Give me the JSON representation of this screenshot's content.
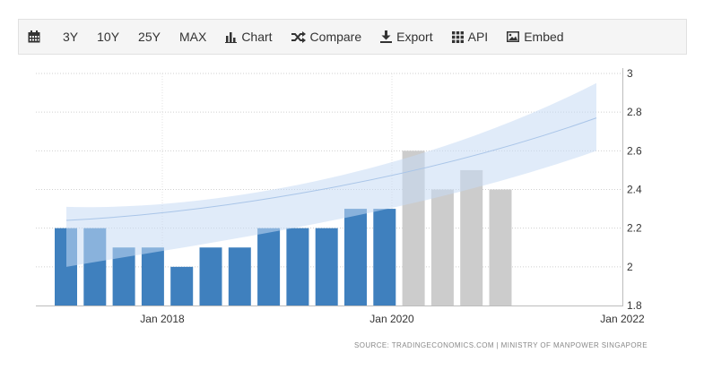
{
  "toolbar": {
    "items": [
      {
        "label": "3Y"
      },
      {
        "label": "10Y"
      },
      {
        "label": "25Y"
      },
      {
        "label": "MAX"
      },
      {
        "label": "Chart"
      },
      {
        "label": "Compare"
      },
      {
        "label": "Export"
      },
      {
        "label": "API"
      },
      {
        "label": "Embed"
      }
    ]
  },
  "chart_data": {
    "type": "bar",
    "series": [
      {
        "color": "#3f80be",
        "values": [
          2.2,
          2.2,
          2.1,
          2.1,
          2.0,
          2.1,
          2.1,
          2.2,
          2.2,
          2.2,
          2.3,
          2.3
        ]
      },
      {
        "color": "#cccccc",
        "values": [
          2.6,
          2.4,
          2.5,
          2.4
        ]
      }
    ],
    "forecast_band": {
      "color": "#c6daf4",
      "center": [
        2.24,
        2.28,
        2.45,
        2.77
      ],
      "lower": [
        2.0,
        2.13,
        2.28,
        2.6
      ],
      "upper": [
        2.31,
        2.29,
        2.49,
        2.95
      ]
    },
    "y_ticks": [
      "1.8",
      "2",
      "2.2",
      "2.4",
      "2.6",
      "2.8",
      "3"
    ],
    "x_ticks": [
      "Jan 2018",
      "Jan 2020",
      "Jan 2022"
    ],
    "ylim": [
      1.8,
      3.0
    ],
    "xlabel": "",
    "ylabel": "",
    "grid": true
  },
  "source": "SOURCE: TRADINGECONOMICS.COM | MINISTRY OF MANPOWER SINGAPORE"
}
